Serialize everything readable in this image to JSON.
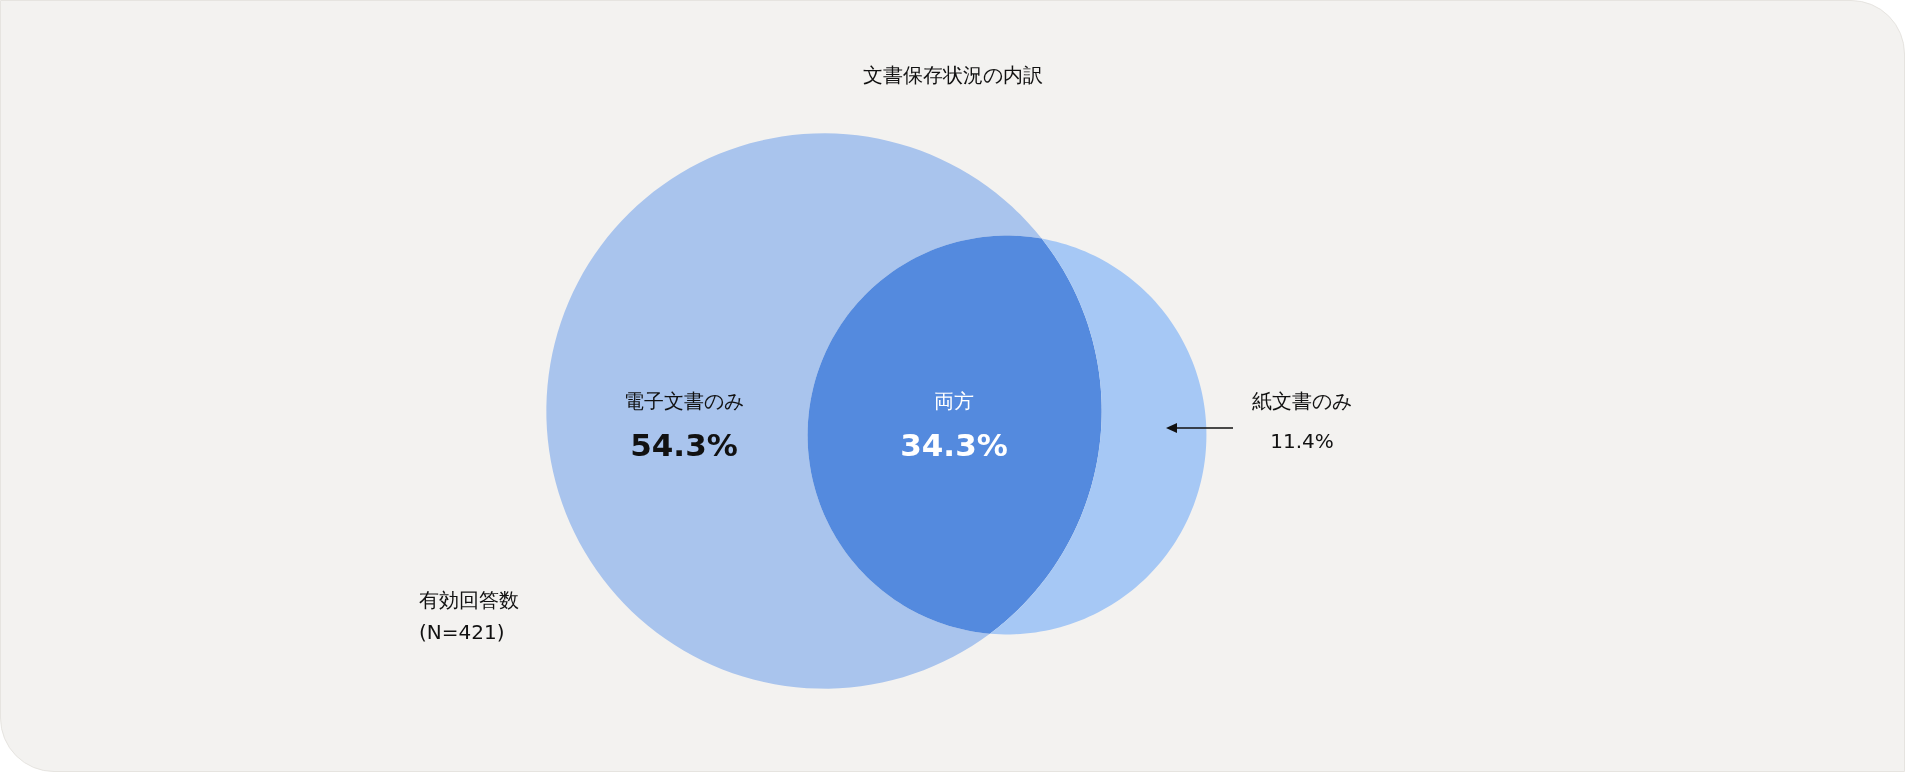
{
  "chart_data": {
    "type": "other",
    "title": "文書保存状況の内訳",
    "categories": [
      "電子文書のみ",
      "両方",
      "紙文書のみ"
    ],
    "values": [
      54.3,
      34.3,
      11.4
    ],
    "value_labels": [
      "54.3%",
      "34.3%",
      "11.4%"
    ],
    "colors": [
      "#a9c4ed",
      "#548ade",
      "#a6c8f5"
    ],
    "annotations": [
      "有効回答数\n(N=421)"
    ]
  }
}
